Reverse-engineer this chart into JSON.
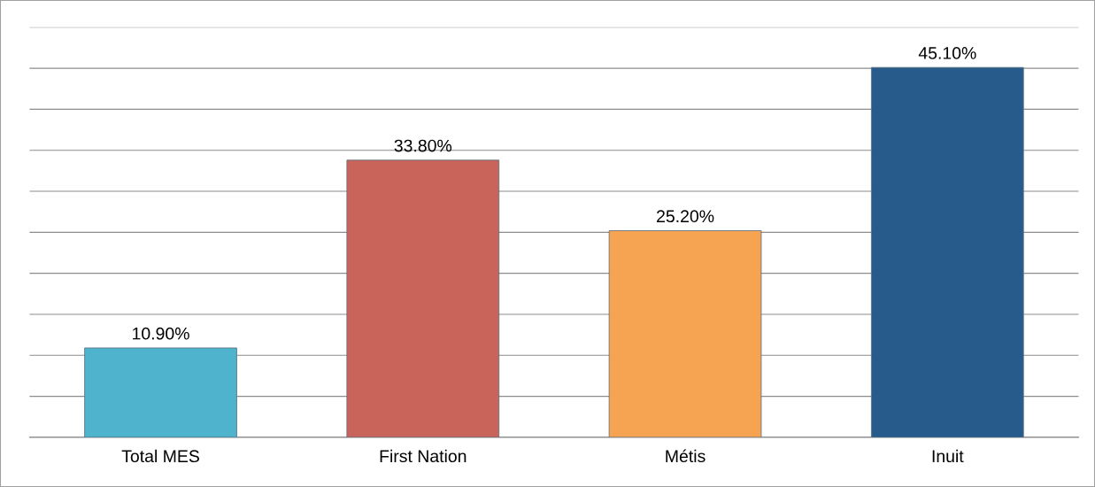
{
  "chart_data": {
    "type": "bar",
    "categories": [
      "Total MES",
      "First Nation",
      "Métis",
      "Inuit"
    ],
    "values": [
      10.9,
      33.8,
      25.2,
      45.1
    ],
    "colors": [
      "#4fb3cd",
      "#c9645a",
      "#f6a352",
      "#265b8b"
    ],
    "value_labels": [
      "10.90%",
      "33.80%",
      "25.20%",
      "45.10%"
    ],
    "ylim": [
      0,
      50
    ],
    "yticks": [
      {
        "value": 0,
        "label": null
      },
      {
        "value": 5,
        "label": null
      },
      {
        "value": 10,
        "label": null
      },
      {
        "value": 15,
        "label": null
      },
      {
        "value": 20,
        "label": null
      },
      {
        "value": 25,
        "label": null
      },
      {
        "value": 30,
        "label": null
      },
      {
        "value": 35,
        "label": null
      },
      {
        "value": 40,
        "label": null
      },
      {
        "value": 45,
        "label": null
      },
      {
        "value": 50,
        "label": null
      }
    ],
    "grid": "y",
    "tick_labels": "x",
    "legend": false
  }
}
